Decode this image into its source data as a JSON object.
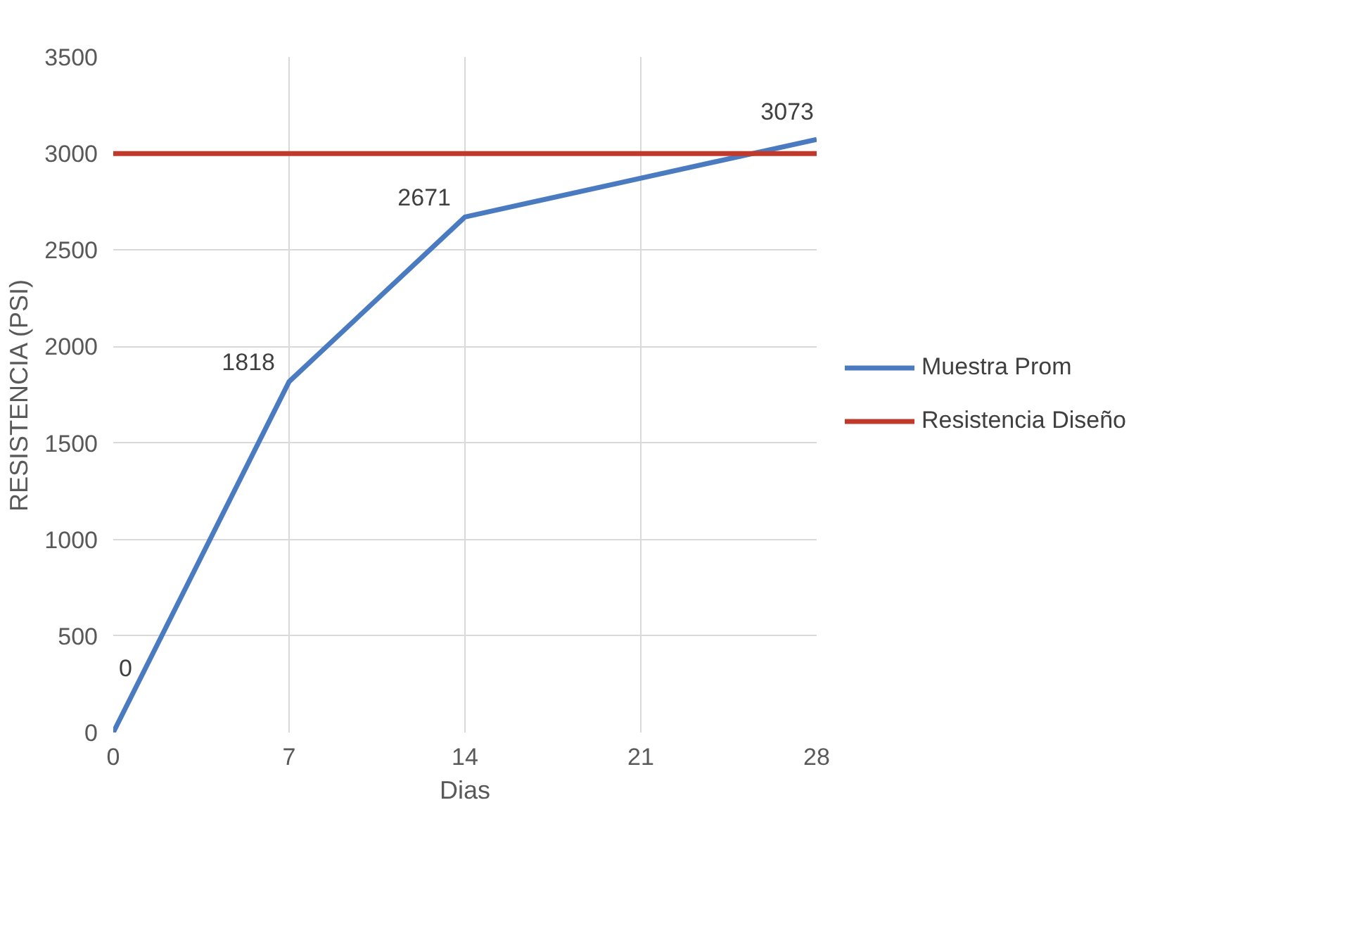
{
  "chart_data": {
    "type": "line",
    "xlabel": "Dias",
    "ylabel": "RESISTENCIA (PSI)",
    "x": [
      0,
      7,
      14,
      28
    ],
    "series": [
      {
        "name": "Muestra Prom",
        "color": "#4a7bc1",
        "values": [
          0,
          1818,
          2671,
          3073
        ],
        "value_labels": [
          "0",
          "1818",
          "2671",
          "3073"
        ]
      },
      {
        "name": "Resistencia Diseño",
        "color": "#c0392b",
        "values": [
          3000,
          3000,
          3000,
          3000
        ]
      }
    ],
    "xlim": [
      0,
      28
    ],
    "xticks": [
      0,
      7,
      14,
      21,
      28
    ],
    "ylim": [
      0,
      3500
    ],
    "yticks": [
      0,
      500,
      1000,
      1500,
      2000,
      2500,
      3000,
      3500
    ],
    "grid": true,
    "legend": "right"
  }
}
